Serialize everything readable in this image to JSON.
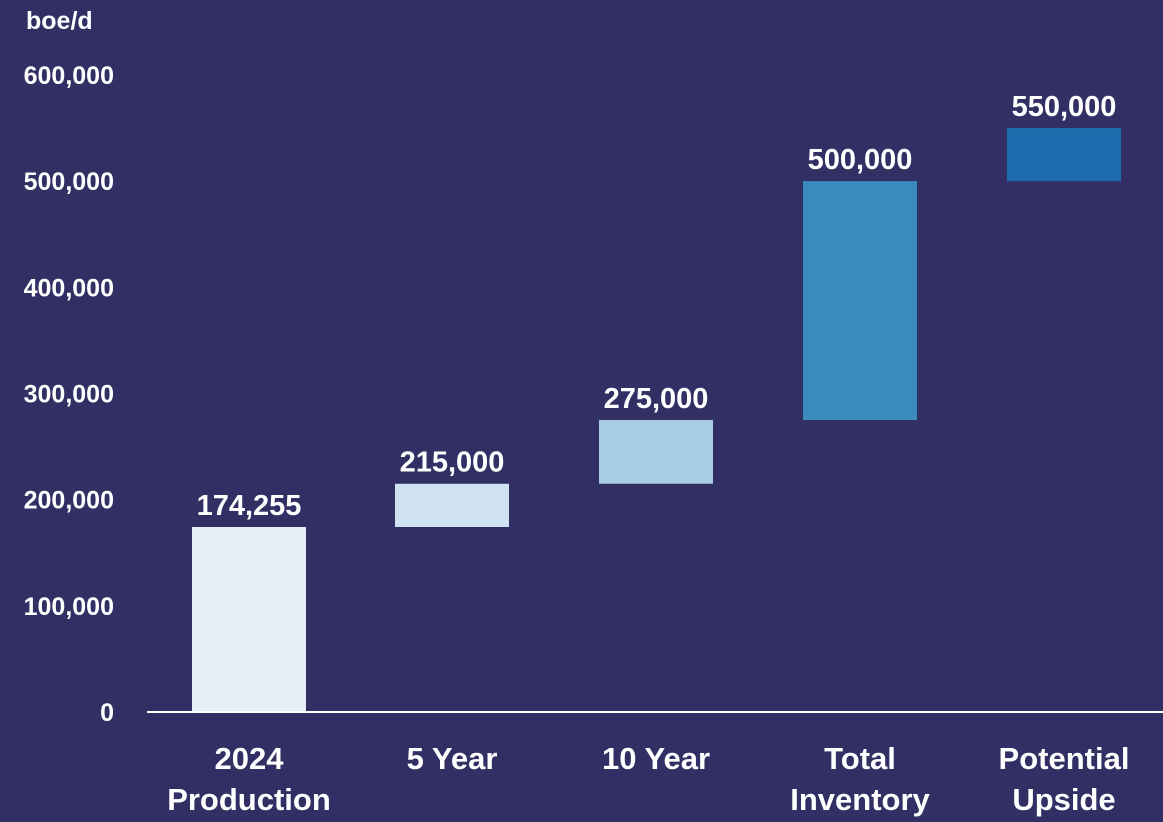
{
  "chart_data": {
    "type": "bar",
    "subtype": "waterfall",
    "ylabel": "boe/d",
    "ylim": [
      0,
      600000
    ],
    "yticks": [
      {
        "value": 0,
        "label": "0"
      },
      {
        "value": 100000,
        "label": "100,000"
      },
      {
        "value": 200000,
        "label": "200,000"
      },
      {
        "value": 300000,
        "label": "300,000"
      },
      {
        "value": 400000,
        "label": "400,000"
      },
      {
        "value": 500000,
        "label": "500,000"
      },
      {
        "value": 600000,
        "label": "600,000"
      }
    ],
    "categories": [
      [
        "2024",
        "Production"
      ],
      [
        "5 Year"
      ],
      [
        "10 Year"
      ],
      [
        "Total",
        "Inventory"
      ],
      [
        "Potential",
        "Upside"
      ]
    ],
    "bars": [
      {
        "base": 0,
        "top": 174255,
        "label": "174,255",
        "color": "#e4eef6"
      },
      {
        "base": 174255,
        "top": 215000,
        "label": "215,000",
        "color": "#cfe2f1"
      },
      {
        "base": 215000,
        "top": 275000,
        "label": "275,000",
        "color": "#a9cde4"
      },
      {
        "base": 275000,
        "top": 500000,
        "label": "500,000",
        "color": "#3c8bbf"
      },
      {
        "base": 500000,
        "top": 550000,
        "label": "550,000",
        "color": "#1e6cad"
      }
    ],
    "grid": false,
    "legend": "none"
  },
  "colors": {
    "background": "#312f63",
    "text": "#ffffff",
    "axis": "#ffffff"
  }
}
